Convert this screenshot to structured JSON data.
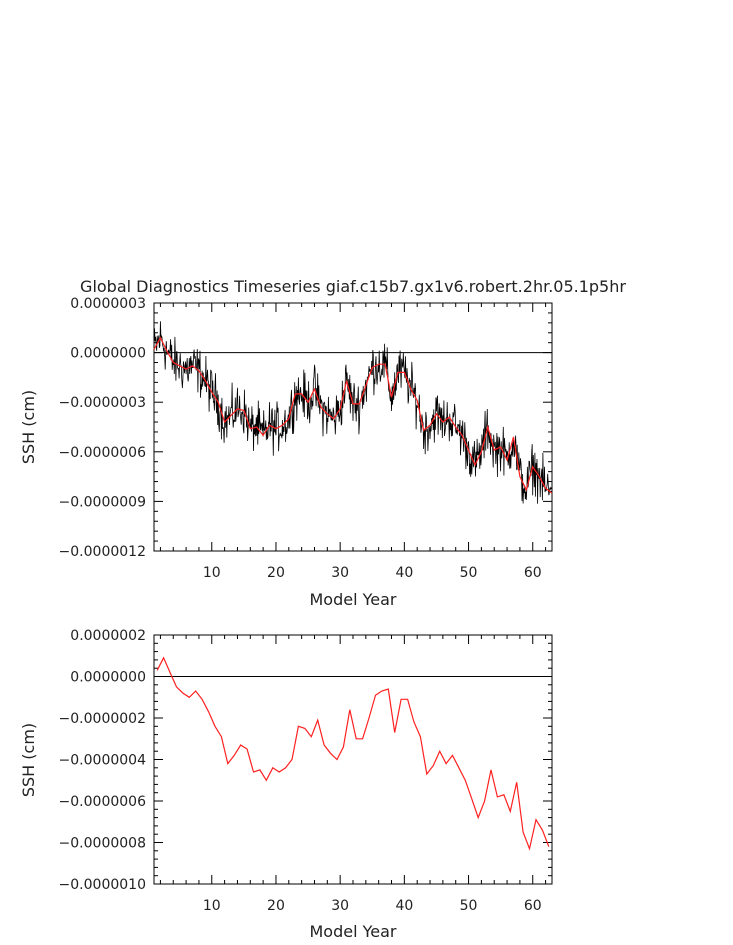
{
  "title": "Global Diagnostics Timeseries giaf.c15b7.gx1v6.robert.2hr.05.1p5hr",
  "colors": {
    "raw": "#000000",
    "smooth": "#ff2020",
    "axis": "#000000"
  },
  "chart_data": [
    {
      "type": "line",
      "title": "Global Diagnostics Timeseries giaf.c15b7.gx1v6.robert.2hr.05.1p5hr",
      "xlabel": "Model Year",
      "ylabel": "SSH (cm)",
      "xlim": [
        1,
        63
      ],
      "ylim": [
        -1.2e-06,
        3e-07
      ],
      "xticks": [
        10,
        20,
        30,
        40,
        50,
        60
      ],
      "xtick_labels": [
        "10",
        "20",
        "30",
        "40",
        "50",
        "60"
      ],
      "yticks": [
        3e-07,
        0,
        -3e-07,
        -6e-07,
        -9e-07,
        -1.2e-06
      ],
      "ytick_labels": [
        "0.0000003",
        "0.0000000",
        "−0.0000003",
        "−0.0000006",
        "−0.0000009",
        "−0.0000012"
      ],
      "reference_line": 0,
      "series": [
        {
          "key": "monthly",
          "color": "#000000",
          "noise_amplitude": 1.3e-07,
          "note_values": "high-frequency values follow the annual-mean curve with scatter",
          "x": [
            1.0,
            2.0,
            3.0,
            4.0,
            5.0,
            6.0,
            7.0,
            8.0,
            9.0,
            10.0,
            11.0,
            12.0,
            13.0,
            14.0,
            15.0,
            16.0,
            17.0,
            18.0,
            19.0,
            20.0,
            21.0,
            22.0,
            23.0,
            24.0,
            25.0,
            26.0,
            27.0,
            28.0,
            29.0,
            30.0,
            31.0,
            32.0,
            33.0,
            34.0,
            35.0,
            36.0,
            37.0,
            38.0,
            39.0,
            40.0,
            41.0,
            42.0,
            43.0,
            44.0,
            45.0,
            46.0,
            47.0,
            48.0,
            49.0,
            50.0,
            51.0,
            52.0,
            53.0,
            54.0,
            55.0,
            56.0,
            57.0,
            58.0,
            59.0,
            60.0,
            61.0,
            62.0,
            63.0
          ],
          "y": [
            2e-08,
            9e-08,
            1e-08,
            -6e-08,
            -8e-08,
            -1e-07,
            -8e-08,
            -1.1e-07,
            -1.7e-07,
            -2.4e-07,
            -3e-07,
            -4.2e-07,
            -3.8e-07,
            -3.4e-07,
            -3.5e-07,
            -4.6e-07,
            -4.5e-07,
            -5e-07,
            -4.4e-07,
            -4.6e-07,
            -4.4e-07,
            -4e-07,
            -2.5e-07,
            -2.5e-07,
            -3e-07,
            -2.2e-07,
            -3.3e-07,
            -3.7e-07,
            -4e-07,
            -3.4e-07,
            -1.7e-07,
            -3.1e-07,
            -3.1e-07,
            -2e-07,
            -9e-08,
            -7e-08,
            -7e-08,
            -2.7e-07,
            -1.2e-07,
            -1.2e-07,
            -2.2e-07,
            -2.9e-07,
            -4.7e-07,
            -4.4e-07,
            -3.7e-07,
            -4.2e-07,
            -3.9e-07,
            -4.5e-07,
            -5e-07,
            -5.9e-07,
            -6.8e-07,
            -6e-07,
            -4.5e-07,
            -5.9e-07,
            -5.7e-07,
            -6.5e-07,
            -5.1e-07,
            -7.5e-07,
            -8.3e-07,
            -6.9e-07,
            -7.5e-07,
            -8.2e-07,
            -8.5e-07
          ]
        },
        {
          "key": "annual",
          "color": "#ff2020",
          "x": [
            1.0,
            2.0,
            3.0,
            4.0,
            5.0,
            6.0,
            7.0,
            8.0,
            9.0,
            10.0,
            11.0,
            12.0,
            13.0,
            14.0,
            15.0,
            16.0,
            17.0,
            18.0,
            19.0,
            20.0,
            21.0,
            22.0,
            23.0,
            24.0,
            25.0,
            26.0,
            27.0,
            28.0,
            29.0,
            30.0,
            31.0,
            32.0,
            33.0,
            34.0,
            35.0,
            36.0,
            37.0,
            38.0,
            39.0,
            40.0,
            41.0,
            42.0,
            43.0,
            44.0,
            45.0,
            46.0,
            47.0,
            48.0,
            49.0,
            50.0,
            51.0,
            52.0,
            53.0,
            54.0,
            55.0,
            56.0,
            57.0,
            58.0,
            59.0,
            60.0,
            61.0,
            62.0,
            63.0
          ],
          "y": [
            2e-08,
            9e-08,
            1e-08,
            -6e-08,
            -8e-08,
            -1e-07,
            -8e-08,
            -1.1e-07,
            -1.7e-07,
            -2.4e-07,
            -3e-07,
            -4.2e-07,
            -3.8e-07,
            -3.4e-07,
            -3.5e-07,
            -4.6e-07,
            -4.5e-07,
            -5e-07,
            -4.4e-07,
            -4.6e-07,
            -4.4e-07,
            -4e-07,
            -2.5e-07,
            -2.5e-07,
            -3e-07,
            -2.2e-07,
            -3.3e-07,
            -3.7e-07,
            -4e-07,
            -3.4e-07,
            -1.7e-07,
            -3.1e-07,
            -3.1e-07,
            -2e-07,
            -9e-08,
            -7e-08,
            -7e-08,
            -2.7e-07,
            -1.2e-07,
            -1.2e-07,
            -2.2e-07,
            -2.9e-07,
            -4.7e-07,
            -4.4e-07,
            -3.7e-07,
            -4.2e-07,
            -3.9e-07,
            -4.5e-07,
            -5e-07,
            -5.9e-07,
            -6.8e-07,
            -6e-07,
            -4.5e-07,
            -5.9e-07,
            -5.7e-07,
            -6.5e-07,
            -5.1e-07,
            -7.5e-07,
            -8.3e-07,
            -6.9e-07,
            -7.5e-07,
            -8.2e-07,
            -8.5e-07
          ]
        }
      ]
    },
    {
      "type": "line",
      "xlabel": "Model Year",
      "ylabel": "SSH (cm)",
      "xlim": [
        1,
        63
      ],
      "ylim": [
        -1e-06,
        2e-07
      ],
      "xticks": [
        10,
        20,
        30,
        40,
        50,
        60
      ],
      "xtick_labels": [
        "10",
        "20",
        "30",
        "40",
        "50",
        "60"
      ],
      "yticks": [
        2e-07,
        0,
        -2e-07,
        -4e-07,
        -6e-07,
        -8e-07,
        -1e-06
      ],
      "ytick_labels": [
        "0.0000002",
        "0.0000000",
        "−0.0000002",
        "−0.0000004",
        "−0.0000006",
        "−0.0000008",
        "−0.0000010"
      ],
      "reference_line": 0,
      "series": [
        {
          "key": "annual",
          "color": "#ff2020",
          "x": [
            1.5,
            2.5,
            3.5,
            4.5,
            5.5,
            6.5,
            7.5,
            8.5,
            9.5,
            10.5,
            11.5,
            12.5,
            13.5,
            14.5,
            15.5,
            16.5,
            17.5,
            18.5,
            19.5,
            20.5,
            21.5,
            22.5,
            23.5,
            24.5,
            25.5,
            26.5,
            27.5,
            28.5,
            29.5,
            30.5,
            31.5,
            32.5,
            33.5,
            34.5,
            35.5,
            36.5,
            37.5,
            38.5,
            39.5,
            40.5,
            41.5,
            42.5,
            43.5,
            44.5,
            45.5,
            46.5,
            47.5,
            48.5,
            49.5,
            50.5,
            51.5,
            52.5,
            53.5,
            54.5,
            55.5,
            56.5,
            57.5,
            58.5,
            59.5,
            60.5,
            61.5,
            62.5
          ],
          "y": [
            3e-08,
            9e-08,
            2e-08,
            -5e-08,
            -8e-08,
            -1e-07,
            -7e-08,
            -1.1e-07,
            -1.7e-07,
            -2.4e-07,
            -2.9e-07,
            -4.2e-07,
            -3.8e-07,
            -3.3e-07,
            -3.5e-07,
            -4.6e-07,
            -4.5e-07,
            -5e-07,
            -4.4e-07,
            -4.6e-07,
            -4.4e-07,
            -4e-07,
            -2.4e-07,
            -2.5e-07,
            -2.9e-07,
            -2.1e-07,
            -3.3e-07,
            -3.7e-07,
            -4e-07,
            -3.4e-07,
            -1.6e-07,
            -3e-07,
            -3e-07,
            -2e-07,
            -9e-08,
            -7e-08,
            -6e-08,
            -2.7e-07,
            -1.1e-07,
            -1.1e-07,
            -2.2e-07,
            -2.9e-07,
            -4.7e-07,
            -4.3e-07,
            -3.6e-07,
            -4.2e-07,
            -3.8e-07,
            -4.4e-07,
            -5e-07,
            -5.9e-07,
            -6.8e-07,
            -6e-07,
            -4.5e-07,
            -5.8e-07,
            -5.7e-07,
            -6.5e-07,
            -5.1e-07,
            -7.5e-07,
            -8.3e-07,
            -6.9e-07,
            -7.4e-07,
            -8.2e-07
          ]
        }
      ]
    }
  ]
}
